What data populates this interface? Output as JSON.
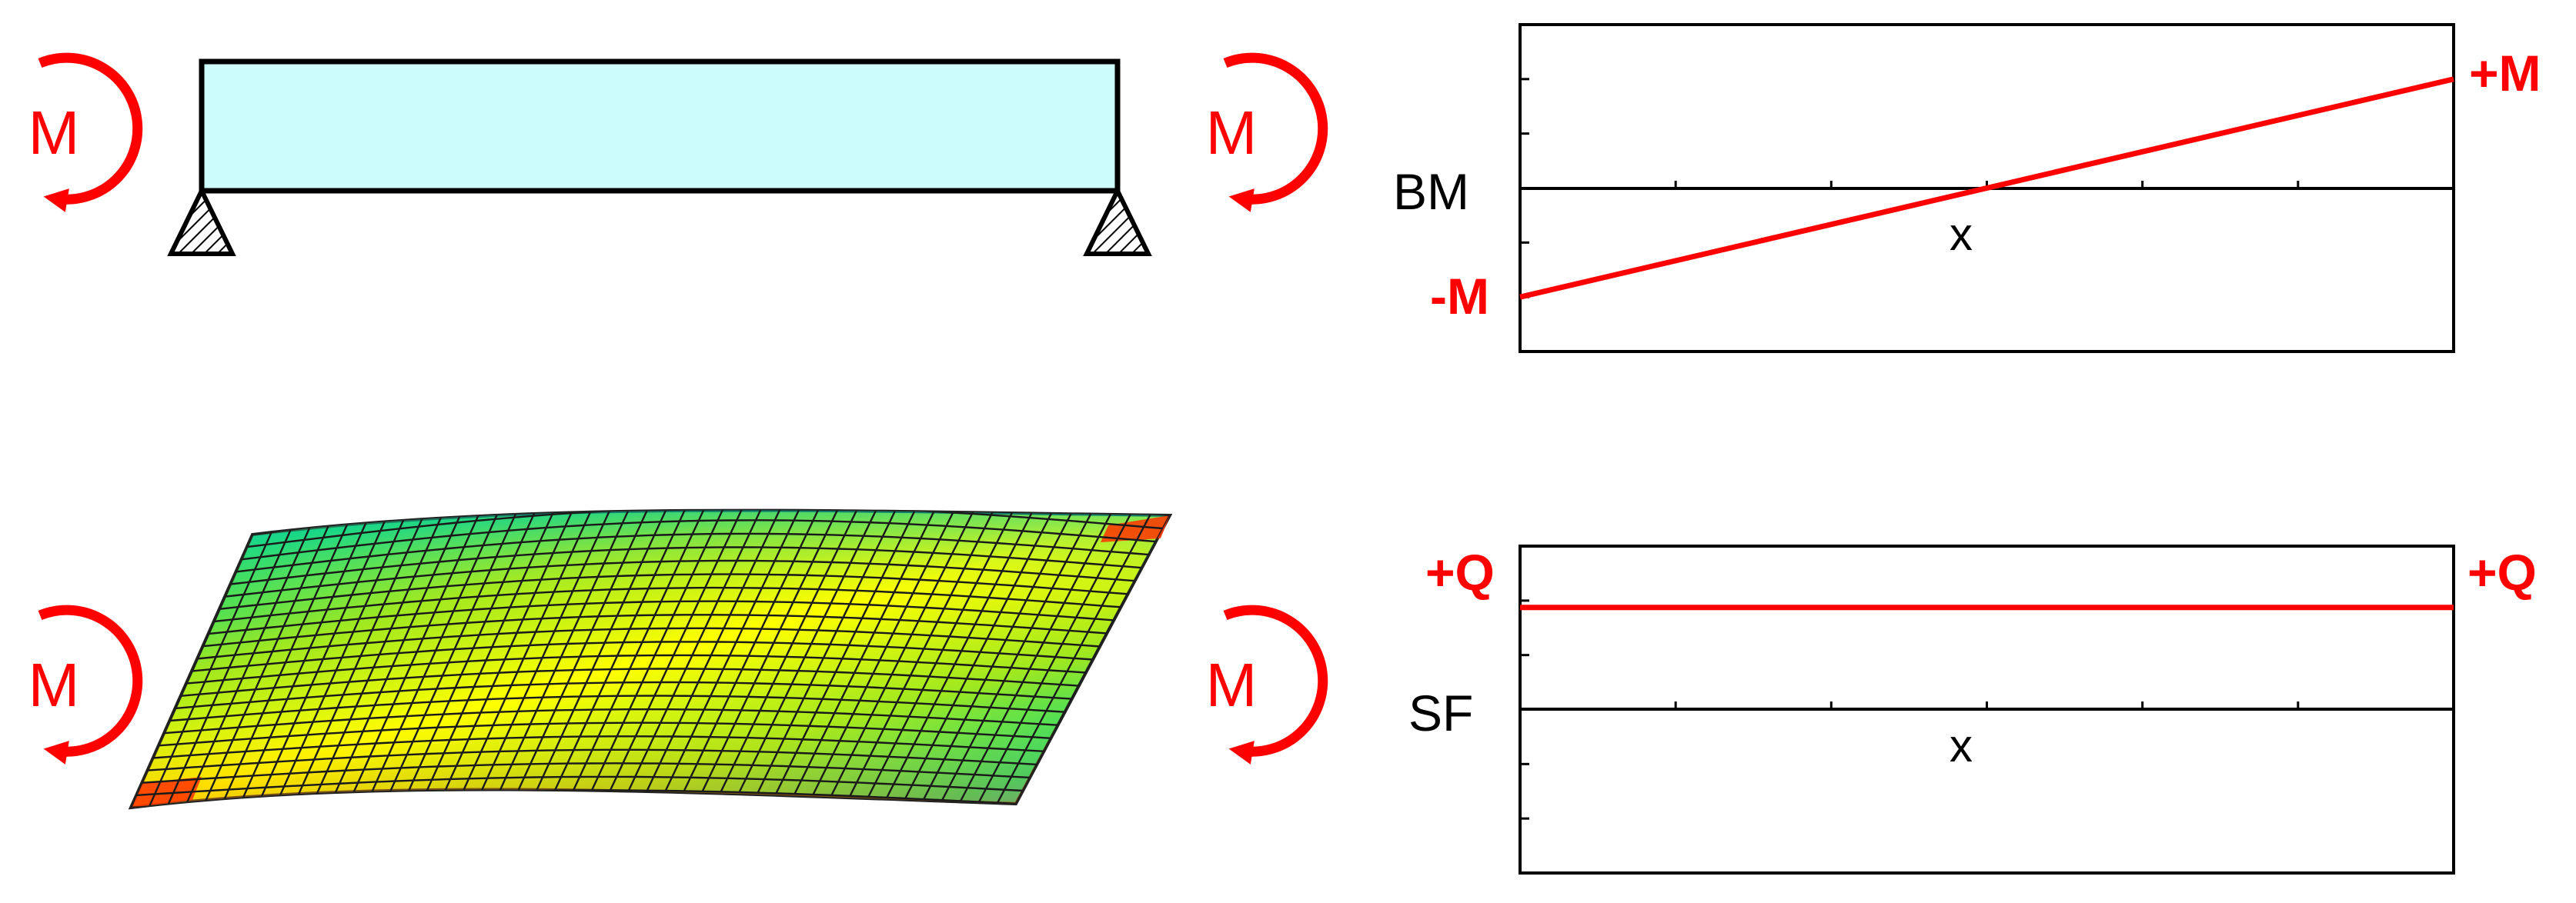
{
  "labels": {
    "moment": "M",
    "bm_axis": "BM",
    "sf_axis": "SF",
    "x_axis": "x",
    "bm_min": "-M",
    "bm_max": "+M",
    "sf_left": "+Q",
    "sf_right": "+Q"
  },
  "colors": {
    "load_arrow": "#ff0000",
    "beam_fill": "#ccfcfc",
    "diagram_line": "#ff0000",
    "outline": "#000000"
  },
  "chart_data": [
    {
      "type": "line",
      "ylabel": "BM",
      "xlabel": "x",
      "x": [
        0,
        1
      ],
      "series": [
        {
          "values": [
            -1,
            1
          ]
        }
      ],
      "ylim": [
        -1.5,
        1.5
      ]
    },
    {
      "type": "line",
      "ylabel": "SF",
      "xlabel": "x",
      "x": [
        0,
        1
      ],
      "series": [
        {
          "values": [
            1,
            1
          ]
        }
      ],
      "ylim": [
        -1.6,
        1.6
      ]
    }
  ]
}
